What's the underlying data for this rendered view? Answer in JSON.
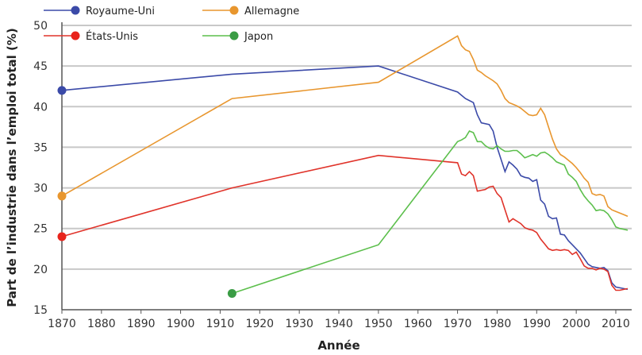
{
  "chart_data": {
    "type": "line",
    "title": "",
    "xlabel": "Année",
    "ylabel": "Part de l’industrie dans l’emploi total (%)",
    "xlim": [
      1870,
      2013
    ],
    "ylim": [
      15,
      50
    ],
    "xticks": [
      1870,
      1880,
      1890,
      1900,
      1910,
      1920,
      1930,
      1940,
      1950,
      1960,
      1970,
      1980,
      1990,
      2000,
      2010
    ],
    "yticks": [
      15,
      20,
      25,
      30,
      35,
      40,
      45,
      50
    ],
    "grid": "horizontal",
    "legend": "top-left",
    "series": [
      {
        "name": "Royaume-Uni",
        "color": "#3b4aa8",
        "marker_color": "#3b4aa8",
        "x": [
          1870,
          1913,
          1950,
          1970,
          1972,
          1974,
          1975,
          1976,
          1978,
          1979,
          1980,
          1981,
          1982,
          1983,
          1984,
          1985,
          1986,
          1987,
          1988,
          1989,
          1990,
          1991,
          1992,
          1993,
          1994,
          1995,
          1996,
          1997,
          1998,
          1999,
          2000,
          2001,
          2002,
          2003,
          2004,
          2005,
          2006,
          2007,
          2008,
          2009,
          2010,
          2011,
          2012,
          2013
        ],
        "y": [
          42,
          44,
          45,
          41.8,
          41,
          40.5,
          39,
          38,
          37.8,
          37,
          35,
          33.5,
          32,
          33.2,
          32.8,
          32.3,
          31.5,
          31.3,
          31.2,
          30.8,
          31,
          28.5,
          28,
          26.5,
          26.2,
          26.3,
          24.3,
          24.2,
          23.5,
          23,
          22.5,
          22,
          21.3,
          20.6,
          20.3,
          20.2,
          20.1,
          20.2,
          19.8,
          18.3,
          17.8,
          17.7,
          17.6,
          17.5
        ]
      },
      {
        "name": "Allemagne",
        "color": "#e8962e",
        "marker_color": "#e8962e",
        "x": [
          1870,
          1913,
          1950,
          1970,
          1971,
          1972,
          1973,
          1974,
          1975,
          1976,
          1977,
          1978,
          1979,
          1980,
          1981,
          1982,
          1983,
          1984,
          1985,
          1986,
          1987,
          1988,
          1989,
          1990,
          1991,
          1992,
          1993,
          1994,
          1995,
          1996,
          1997,
          1998,
          1999,
          2000,
          2001,
          2002,
          2003,
          2004,
          2005,
          2006,
          2007,
          2008,
          2009,
          2010,
          2011,
          2012,
          2013
        ],
        "y": [
          29,
          41,
          43,
          48.7,
          47.5,
          47,
          46.8,
          45.8,
          44.5,
          44.2,
          43.8,
          43.5,
          43.2,
          42.8,
          42,
          41,
          40.5,
          40.3,
          40.1,
          39.8,
          39.4,
          39,
          38.9,
          39,
          39.8,
          39,
          37.5,
          36,
          34.8,
          34.1,
          33.8,
          33.4,
          33,
          32.5,
          31.9,
          31.2,
          30.7,
          29.3,
          29.1,
          29.2,
          29,
          27.7,
          27.3,
          27.1,
          26.9,
          26.7,
          26.5
        ]
      },
      {
        "name": "États-Unis",
        "color": "#e0332a",
        "marker_color": "#e8241c",
        "x": [
          1870,
          1913,
          1950,
          1970,
          1971,
          1972,
          1973,
          1974,
          1975,
          1976,
          1977,
          1978,
          1979,
          1980,
          1981,
          1982,
          1983,
          1984,
          1985,
          1986,
          1987,
          1988,
          1989,
          1990,
          1991,
          1992,
          1993,
          1994,
          1995,
          1996,
          1997,
          1998,
          1999,
          2000,
          2001,
          2002,
          2003,
          2004,
          2005,
          2006,
          2007,
          2008,
          2009,
          2010,
          2011,
          2012,
          2013
        ],
        "y": [
          24,
          30,
          34,
          33.1,
          31.7,
          31.5,
          32,
          31.5,
          29.6,
          29.7,
          29.8,
          30.1,
          30.2,
          29.3,
          28.8,
          27.3,
          25.8,
          26.2,
          25.9,
          25.6,
          25.1,
          24.9,
          24.8,
          24.5,
          23.7,
          23.1,
          22.5,
          22.3,
          22.4,
          22.3,
          22.4,
          22.3,
          21.8,
          22.1,
          21.3,
          20.4,
          20.1,
          20.1,
          19.9,
          20.1,
          20,
          19.7,
          18,
          17.4,
          17.4,
          17.5,
          17.6
        ]
      },
      {
        "name": "Japon",
        "color": "#5cbf4c",
        "marker_color": "#3a9c44",
        "x": [
          1913,
          1950,
          1970,
          1971,
          1972,
          1973,
          1974,
          1975,
          1976,
          1977,
          1978,
          1979,
          1980,
          1981,
          1982,
          1983,
          1984,
          1985,
          1986,
          1987,
          1988,
          1989,
          1990,
          1991,
          1992,
          1993,
          1994,
          1995,
          1996,
          1997,
          1998,
          1999,
          2000,
          2001,
          2002,
          2003,
          2004,
          2005,
          2006,
          2007,
          2008,
          2009,
          2010,
          2011,
          2012,
          2013
        ],
        "y": [
          17,
          23,
          35.7,
          35.9,
          36.2,
          37,
          36.8,
          35.7,
          35.7,
          35.2,
          34.9,
          34.8,
          35.2,
          34.8,
          34.5,
          34.5,
          34.6,
          34.6,
          34.2,
          33.7,
          33.9,
          34.1,
          33.9,
          34.3,
          34.4,
          34.1,
          33.7,
          33.2,
          33,
          32.8,
          31.7,
          31.3,
          30.8,
          29.8,
          29,
          28.4,
          27.9,
          27.2,
          27.3,
          27.2,
          26.8,
          26.1,
          25.2,
          25,
          24.9,
          24.8
        ]
      }
    ]
  }
}
